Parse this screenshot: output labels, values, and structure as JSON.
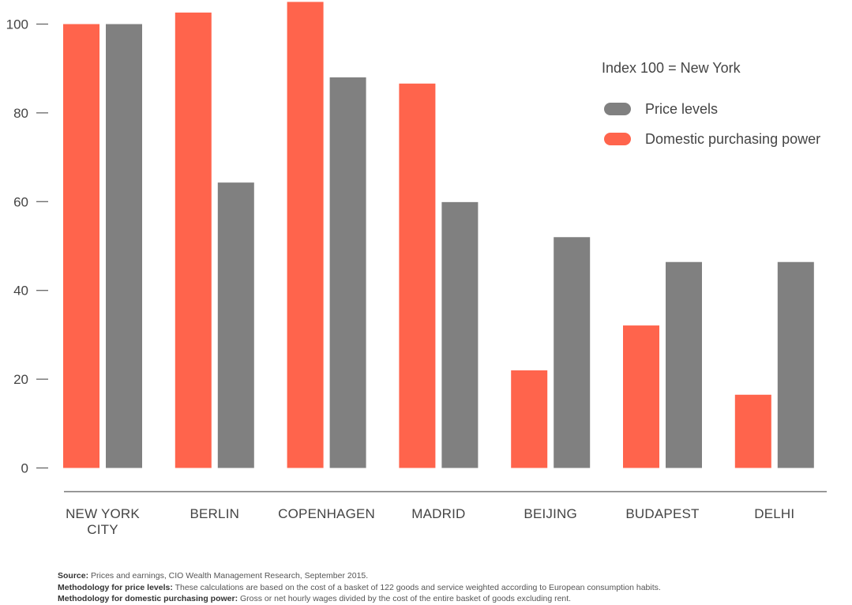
{
  "chart_data": {
    "type": "bar",
    "title": "",
    "xlabel": "",
    "ylabel": "",
    "ylim": [
      0,
      105
    ],
    "yticks": [
      "0",
      "20",
      "40",
      "60",
      "80",
      "100"
    ],
    "ytick_values": [
      0,
      20,
      40,
      60,
      80,
      100
    ],
    "categories": [
      [
        "NEW YORK",
        "CITY"
      ],
      [
        "BERLIN"
      ],
      [
        "COPENHAGEN"
      ],
      [
        "MADRID"
      ],
      [
        "BEIJING"
      ],
      [
        "BUDAPEST"
      ],
      [
        "DELHI"
      ]
    ],
    "series": [
      {
        "name": "Domestic purchasing power",
        "color": "#FF644C",
        "values": [
          100,
          102.6,
          105,
          86.6,
          22,
          32.1,
          16.5
        ]
      },
      {
        "name": "Price levels",
        "color": "#808080",
        "values": [
          100,
          64.3,
          88,
          59.9,
          52,
          46.4,
          46.4
        ]
      }
    ],
    "legend": {
      "title": "Index 100 = New York",
      "placement": "top-right",
      "entries": [
        {
          "label": "Price levels",
          "color": "#808080"
        },
        {
          "label": "Domestic purchasing power",
          "color": "#FF644C"
        }
      ]
    },
    "grid": false
  },
  "notes": [
    {
      "bold": "Source:",
      "text": " Prices and earnings, CIO Wealth Management Research, September 2015."
    },
    {
      "bold": "Methodology for price levels:",
      "text": " These calculations are based on the cost of a basket of 122 goods and service weighted according to European consumption habits."
    },
    {
      "bold": "Methodology for domestic purchasing power:",
      "text": " Gross or net hourly wages divided by the cost of the entire basket of goods excluding rent."
    }
  ]
}
